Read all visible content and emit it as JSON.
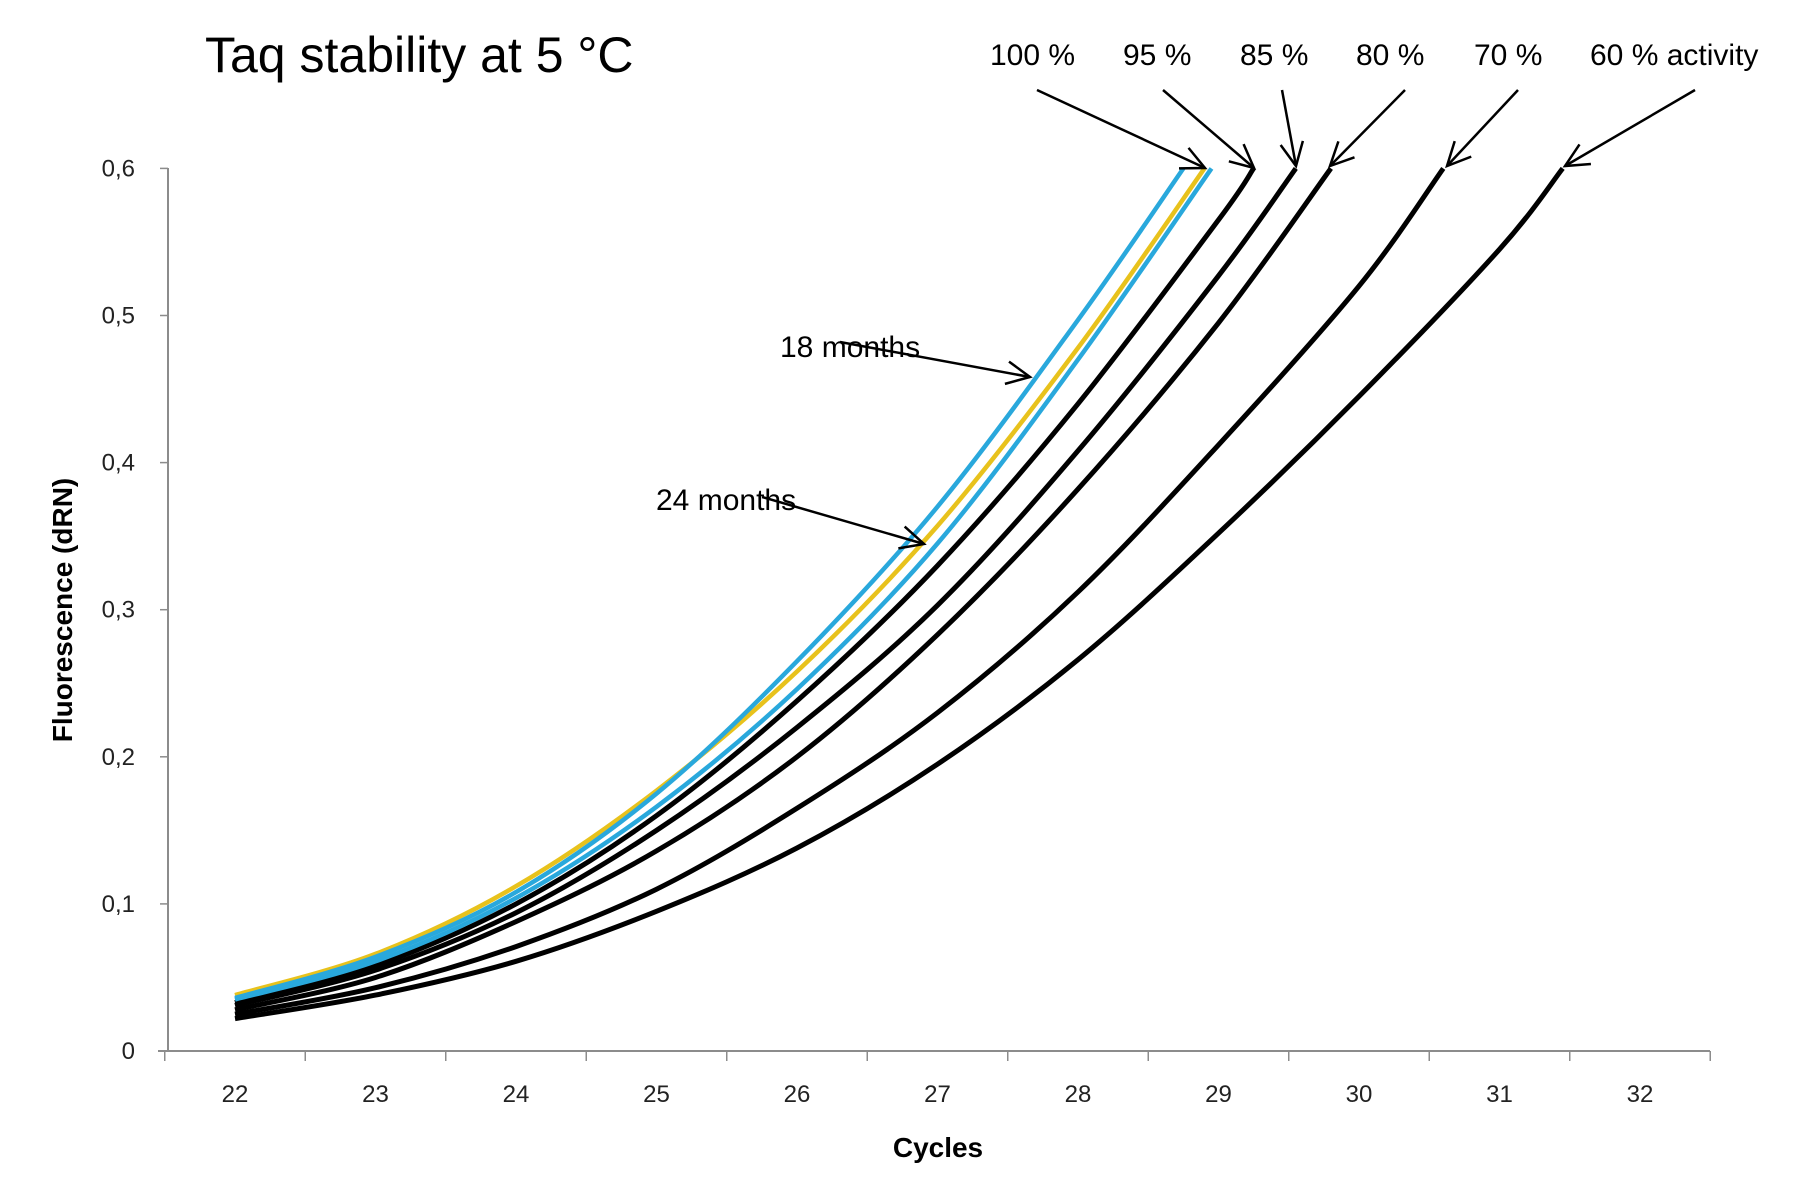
{
  "chart_data": {
    "type": "line",
    "title": "Taq stability at 5 °C",
    "xlabel": "Cycles",
    "ylabel": "Fluorescence (dRN)",
    "xlim": [
      21.5,
      32.5
    ],
    "ylim": [
      0,
      0.6
    ],
    "x_ticks": [
      22,
      23,
      24,
      25,
      26,
      27,
      28,
      29,
      30,
      31,
      32
    ],
    "y_ticks": [
      {
        "value": 0,
        "label": "0"
      },
      {
        "value": 0.1,
        "label": "0,1"
      },
      {
        "value": 0.2,
        "label": "0,2"
      },
      {
        "value": 0.3,
        "label": "0,3"
      },
      {
        "value": 0.4,
        "label": "0,4"
      },
      {
        "value": 0.5,
        "label": "0,5"
      },
      {
        "value": 0.6,
        "label": "0,6"
      }
    ],
    "grid": false,
    "legend": "none",
    "series": [
      {
        "name": "60 % activity",
        "color": "#000000",
        "x": [
          22,
          23,
          24,
          25,
          26,
          27,
          28,
          29,
          30,
          31,
          31.45
        ],
        "y": [
          0.022,
          0.038,
          0.061,
          0.095,
          0.138,
          0.195,
          0.266,
          0.352,
          0.445,
          0.545,
          0.6
        ]
      },
      {
        "name": "70 %",
        "color": "#000000",
        "x": [
          22,
          23,
          24,
          25,
          26,
          27,
          28,
          29,
          30,
          30.6
        ],
        "y": [
          0.025,
          0.043,
          0.071,
          0.11,
          0.165,
          0.23,
          0.312,
          0.412,
          0.52,
          0.6
        ]
      },
      {
        "name": "80 %",
        "color": "#000000",
        "x": [
          22,
          23,
          24,
          25,
          26,
          27,
          28,
          29,
          29.8
        ],
        "y": [
          0.028,
          0.05,
          0.088,
          0.136,
          0.2,
          0.283,
          0.382,
          0.495,
          0.6
        ]
      },
      {
        "name": "85 %",
        "color": "#000000",
        "x": [
          22,
          23,
          24,
          25,
          26,
          27,
          28,
          29,
          29.55
        ],
        "y": [
          0.031,
          0.055,
          0.094,
          0.15,
          0.22,
          0.303,
          0.408,
          0.527,
          0.6
        ]
      },
      {
        "name": "95 %",
        "color": "#000000",
        "x": [
          22,
          23,
          24,
          25,
          26,
          27,
          28,
          29,
          29.25
        ],
        "y": [
          0.033,
          0.058,
          0.1,
          0.16,
          0.238,
          0.33,
          0.44,
          0.565,
          0.6
        ]
      },
      {
        "name": "24 months",
        "color": "#29a8dc",
        "x": [
          22,
          23,
          24,
          25,
          26,
          27,
          28,
          28.95
        ],
        "y": [
          0.035,
          0.061,
          0.104,
          0.166,
          0.246,
          0.345,
          0.47,
          0.6
        ]
      },
      {
        "name": "18 months",
        "color": "#e8c21c",
        "x": [
          22,
          23,
          24,
          25,
          26,
          27,
          28,
          28.9
        ],
        "y": [
          0.038,
          0.066,
          0.112,
          0.177,
          0.258,
          0.357,
          0.478,
          0.6
        ]
      },
      {
        "name": "100 %",
        "color": "#29a8dc",
        "x": [
          22,
          23,
          24,
          25,
          26,
          27,
          28,
          28.75
        ],
        "y": [
          0.036,
          0.064,
          0.108,
          0.175,
          0.265,
          0.37,
          0.497,
          0.6
        ]
      }
    ],
    "annotations": [
      {
        "text": "100 %",
        "points_to": "100 %"
      },
      {
        "text": "95 %",
        "points_to": "95 %"
      },
      {
        "text": "85 %",
        "points_to": "85 %"
      },
      {
        "text": "80 %",
        "points_to": "80 %"
      },
      {
        "text": "70 %",
        "points_to": "70 %"
      },
      {
        "text": "60 % activity",
        "points_to": "60 % activity"
      },
      {
        "text": "18 months",
        "points_to": "18 months"
      },
      {
        "text": "24 months",
        "points_to": "24 months"
      }
    ]
  }
}
